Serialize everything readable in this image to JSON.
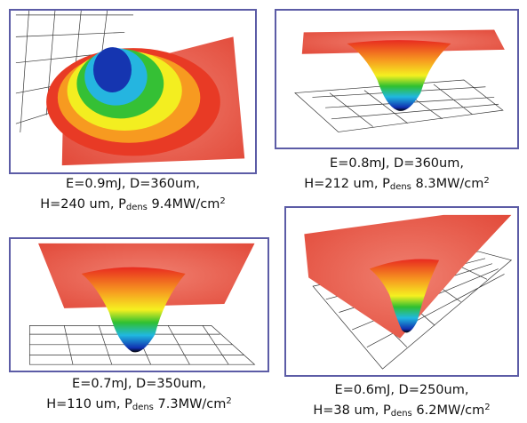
{
  "panels": [
    {
      "caption": {
        "line1": "E=0.9mJ, D=360um,",
        "line2": {
          "prefix": "H=240 um, P",
          "sub": "dens",
          "rest": " 9.4MW/cm",
          "sup": "2"
        }
      }
    },
    {
      "caption": {
        "line1": "E=0.8mJ, D=360um,",
        "line2": {
          "prefix": "H=212 um, P",
          "sub": "dens",
          "rest": " 8.3MW/cm",
          "sup": "2"
        }
      }
    },
    {
      "caption": {
        "line1": "E=0.7mJ, D=350um,",
        "line2": {
          "prefix": "H=110 um, P",
          "sub": "dens",
          "rest": " 7.3MW/cm",
          "sup": "2"
        }
      }
    },
    {
      "caption": {
        "line1": "E=0.6mJ, D=250um,",
        "line2": {
          "prefix": "H=38 um, P",
          "sub": "dens",
          "rest": " 6.2MW/cm",
          "sup": "2"
        }
      }
    }
  ]
}
